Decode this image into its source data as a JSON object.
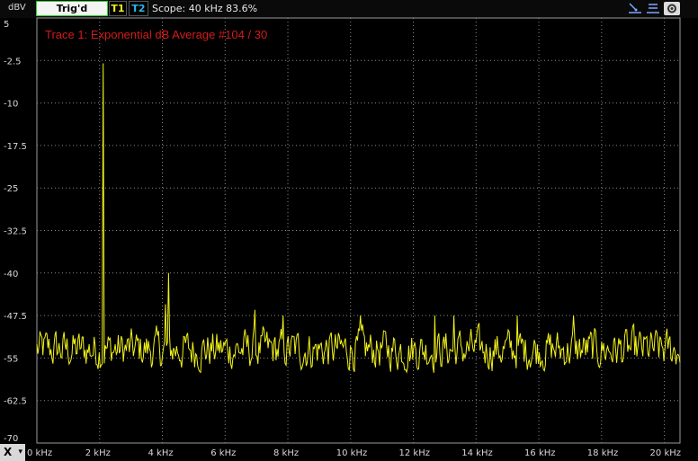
{
  "toolbar": {
    "unit_label": "dBV",
    "trig_label": "Trig'd",
    "t1_label": "T1",
    "t2_label": "T2",
    "scope_text": "Scope: 40 kHz 83.6%",
    "x_button_label": "X",
    "x_button_arrow": "▾"
  },
  "colors": {
    "trace": "#f2f21a",
    "grid": "#8a8a8a",
    "annotation": "#d41b1b",
    "background": "#000000"
  },
  "chart_data": {
    "type": "line",
    "title": "",
    "annotation": "Trace 1: Exponential dB Average #104 / 30",
    "xlabel": "",
    "ylabel": "dBV",
    "xlim": [
      0,
      20.5
    ],
    "ylim": [
      -70,
      5
    ],
    "x_ticks": [
      "0 kHz",
      "2 kHz",
      "4 kHz",
      "6 kHz",
      "8 kHz",
      "10 kHz",
      "12 kHz",
      "14 kHz",
      "16 kHz",
      "18 kHz",
      "20 kHz"
    ],
    "y_ticks": [
      "5",
      "-2.5",
      "-10",
      "-17.5",
      "-25",
      "-32.5",
      "-40",
      "-47.5",
      "-55",
      "-62.5",
      "-70"
    ],
    "grid": true,
    "series": [
      {
        "color": "#f2f21a",
        "noise_floor_range": [
          -59,
          -48
        ],
        "peaks": [
          {
            "x": 2.1,
            "y": -3
          },
          {
            "x": 4.2,
            "y": -40
          },
          {
            "x": 4.1,
            "y": -45.5
          },
          {
            "x": 6.95,
            "y": -46.5
          },
          {
            "x": 7.85,
            "y": -47.5
          },
          {
            "x": 10.3,
            "y": -47.5
          },
          {
            "x": 12.7,
            "y": -47.5
          },
          {
            "x": 13.3,
            "y": -47.5
          },
          {
            "x": 15.3,
            "y": -47.5
          },
          {
            "x": 17.1,
            "y": -47.5
          }
        ]
      }
    ]
  }
}
